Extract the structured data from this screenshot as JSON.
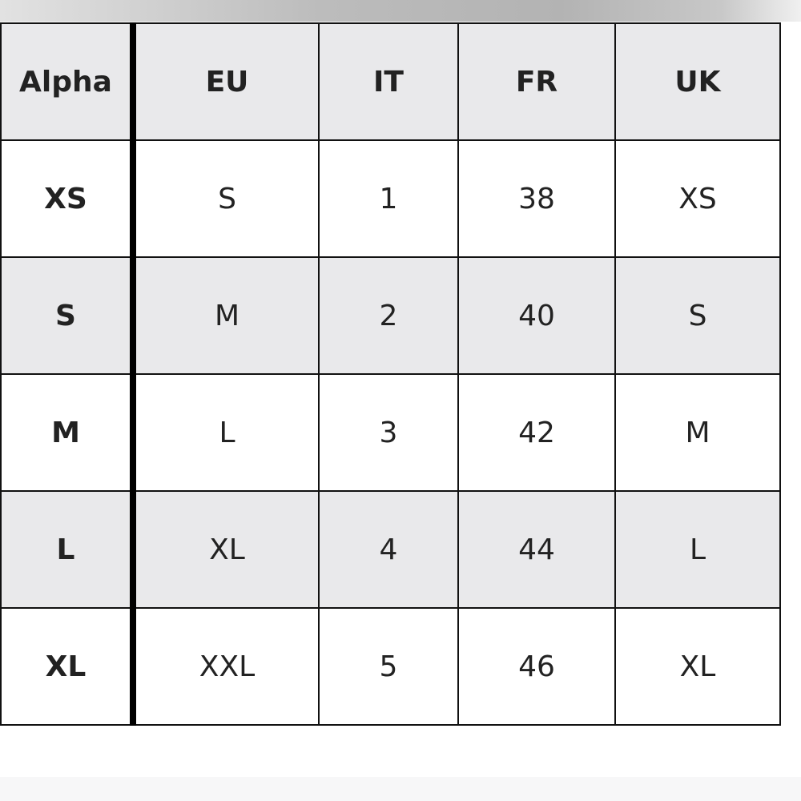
{
  "table": {
    "headers": [
      "Alpha",
      "EU",
      "IT",
      "FR",
      "UK"
    ],
    "rows": [
      [
        "XS",
        "S",
        "1",
        "38",
        "XS"
      ],
      [
        "S",
        "M",
        "2",
        "40",
        "S"
      ],
      [
        "M",
        "L",
        "3",
        "42",
        "M"
      ],
      [
        "L",
        "XL",
        "4",
        "44",
        "L"
      ],
      [
        "XL",
        "XXL",
        "5",
        "46",
        "XL"
      ]
    ]
  },
  "colors": {
    "header_bg": "#e9e9eb",
    "alt_row_bg": "#e9e9eb",
    "border": "#111111"
  }
}
